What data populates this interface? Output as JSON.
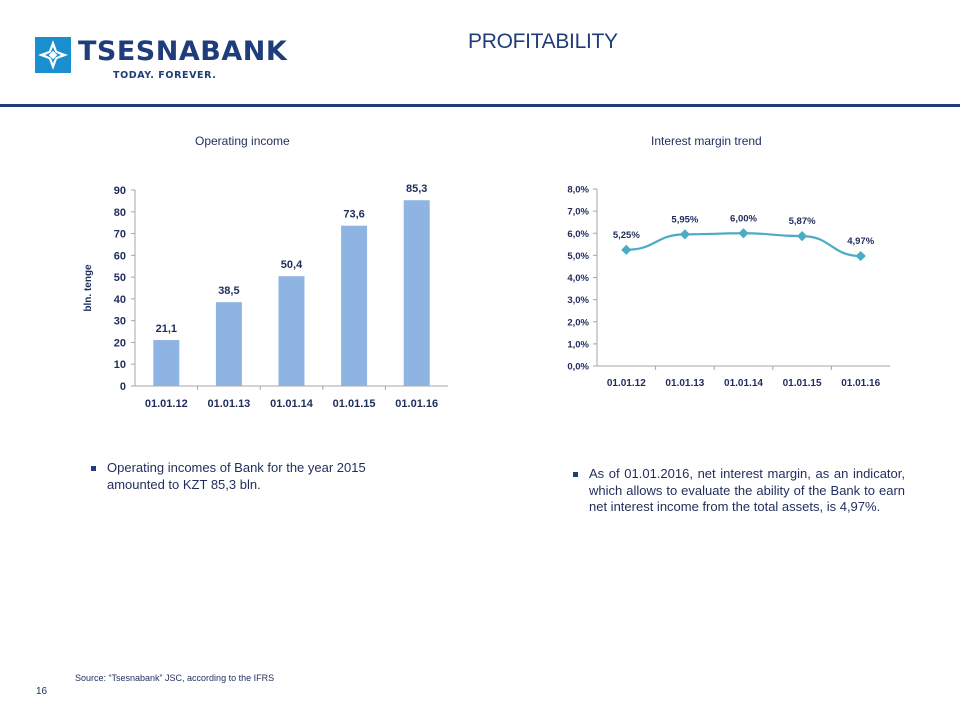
{
  "header": {
    "logo_text": "TSESNABANK",
    "logo_tagline": "TODAY. FOREVER.",
    "page_title": "PROFITABILITY"
  },
  "colors": {
    "brand_blue": "#1f3d7a",
    "logo_cyan": "#1a8fd0",
    "bar_fill": "#8db4e2",
    "line_color": "#4bacc6",
    "axis_gray": "#a6a6a6",
    "text_dark": "#1f2d5c"
  },
  "icons": {
    "logo": "tsesnabank-star-logo-icon",
    "bullet": "square-bullet-icon"
  },
  "chart_data": [
    {
      "type": "bar",
      "title": "Operating income",
      "ylabel": "bln. tenge",
      "xlabel": "",
      "categories": [
        "01.01.12",
        "01.01.13",
        "01.01.14",
        "01.01.15",
        "01.01.16"
      ],
      "values": [
        21.1,
        38.5,
        50.4,
        73.6,
        85.3
      ],
      "data_labels": [
        "21,1",
        "38,5",
        "50,4",
        "73,6",
        "85,3"
      ],
      "ylim": [
        0,
        90
      ],
      "yticks": [
        0,
        10,
        20,
        30,
        40,
        50,
        60,
        70,
        80,
        90
      ],
      "ytick_labels": [
        "0",
        "10",
        "20",
        "30",
        "40",
        "50",
        "60",
        "70",
        "80",
        "90"
      ],
      "grid": false,
      "legend": "none"
    },
    {
      "type": "line",
      "title": "Interest margin trend",
      "ylabel": "",
      "xlabel": "",
      "categories": [
        "01.01.12",
        "01.01.13",
        "01.01.14",
        "01.01.15",
        "01.01.16"
      ],
      "values": [
        5.25,
        5.95,
        6.0,
        5.87,
        4.97
      ],
      "data_labels": [
        "5,25%",
        "5,95%",
        "6,00%",
        "5,87%",
        "4,97%"
      ],
      "ylim": [
        0,
        8
      ],
      "yticks": [
        0,
        1,
        2,
        3,
        4,
        5,
        6,
        7,
        8
      ],
      "ytick_labels": [
        "0,0%",
        "1,0%",
        "2,0%",
        "3,0%",
        "4,0%",
        "5,0%",
        "6,0%",
        "7,0%",
        "8,0%"
      ],
      "grid": false,
      "legend": "none"
    }
  ],
  "notes": {
    "left_bullet": "Operating incomes of Bank for the year 2015 amounted to KZT 85,3 bln.",
    "right_bullet": "As of 01.01.2016, net interest margin, as an indicator, which allows to evaluate the ability of the Bank to earn net interest income from the total assets, is 4,97%."
  },
  "footer": {
    "source": "Source: “Tsesnabank” JSC, according to the IFRS",
    "page_number": "16"
  }
}
